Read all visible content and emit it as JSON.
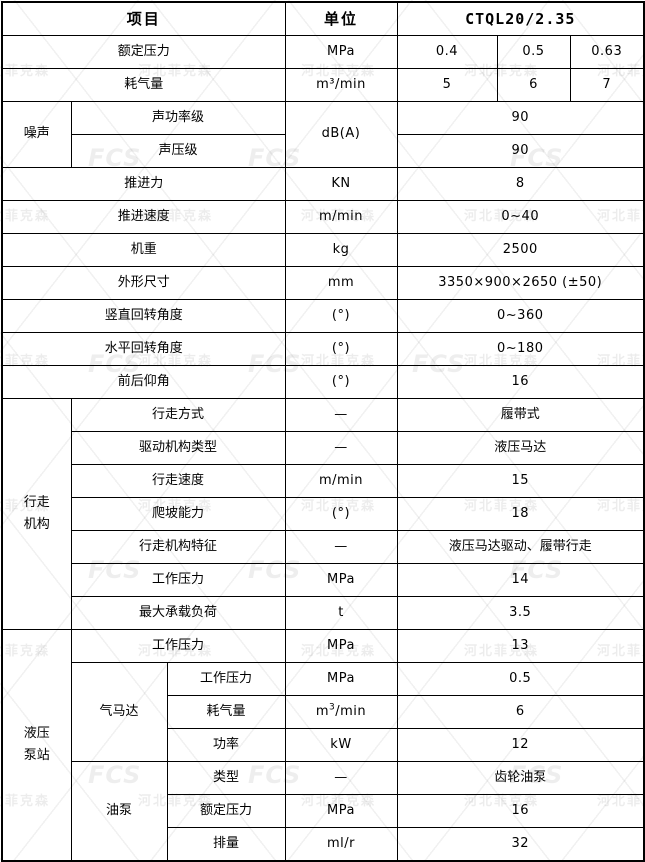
{
  "header": {
    "item_label": "项目",
    "unit_label": "单位",
    "model": "CTQL20/2.35"
  },
  "rows": {
    "rated_pressure": {
      "label": "额定压力",
      "unit": "MPa",
      "values": [
        "0.4",
        "0.5",
        "0.63"
      ]
    },
    "air_consumption": {
      "label": "耗气量",
      "unit": "m³/min",
      "values": [
        "5",
        "6",
        "7"
      ]
    },
    "noise": {
      "label": "噪声",
      "unit": "dB(A)",
      "items": [
        {
          "label": "声功率级",
          "value": "90"
        },
        {
          "label": "声压级",
          "value": "90"
        }
      ]
    },
    "thrust": {
      "label": "推进力",
      "unit": "KN",
      "value": "8"
    },
    "feed_speed": {
      "label": "推进速度",
      "unit": "m/min",
      "value": "0~40"
    },
    "machine_weight": {
      "label": "机重",
      "unit": "kg",
      "value": "2500"
    },
    "dimensions": {
      "label": "外形尺寸",
      "unit": "mm",
      "value": "3350×900×2650 (±50)"
    },
    "vertical_rotation": {
      "label": "竖直回转角度",
      "unit": "(°)",
      "value": "0~360"
    },
    "horizontal_rotation": {
      "label": "水平回转角度",
      "unit": "(°)",
      "value": "0~180"
    },
    "pitch_angle": {
      "label": "前后仰角",
      "unit": "(°)",
      "value": "16"
    },
    "travel_mechanism": {
      "label": "行走机构",
      "items": [
        {
          "label": "行走方式",
          "unit": "—",
          "value": "履带式"
        },
        {
          "label": "驱动机构类型",
          "unit": "—",
          "value": "液压马达"
        },
        {
          "label": "行走速度",
          "unit": "m/min",
          "value": "15"
        },
        {
          "label": "爬坡能力",
          "unit": "(°)",
          "value": "18"
        },
        {
          "label": "行走机构特征",
          "unit": "—",
          "value": "液压马达驱动、履带行走"
        },
        {
          "label": "工作压力",
          "unit": "MPa",
          "value": "14"
        },
        {
          "label": "最大承载负荷",
          "unit": "t",
          "value": "3.5"
        }
      ]
    },
    "hydraulic_pump_station": {
      "label": "液压泵站",
      "working_pressure": {
        "label": "工作压力",
        "unit": "MPa",
        "value": "13"
      },
      "air_motor": {
        "label": "气马达",
        "items": [
          {
            "label": "工作压力",
            "unit": "MPa",
            "value": "0.5"
          },
          {
            "label": "耗气量",
            "unit_base": "m",
            "unit_sup": "3",
            "unit_rest": "/min",
            "value": "6"
          },
          {
            "label": "功率",
            "unit": "kW",
            "value": "12"
          }
        ]
      },
      "oil_pump": {
        "label": "油泵",
        "items": [
          {
            "label": "类型",
            "unit": "—",
            "value": "齿轮油泵"
          },
          {
            "label": "额定压力",
            "unit": "MPa",
            "value": "16"
          },
          {
            "label": "排量",
            "unit": "ml/r",
            "value": "32"
          }
        ]
      }
    }
  },
  "watermarks": {
    "company_text": "河北菲克森",
    "logo_text": "FCS"
  },
  "colors": {
    "border": "#000000",
    "text": "#000000",
    "background": "#ffffff",
    "watermark": "rgba(0,0,0,0.07)"
  }
}
